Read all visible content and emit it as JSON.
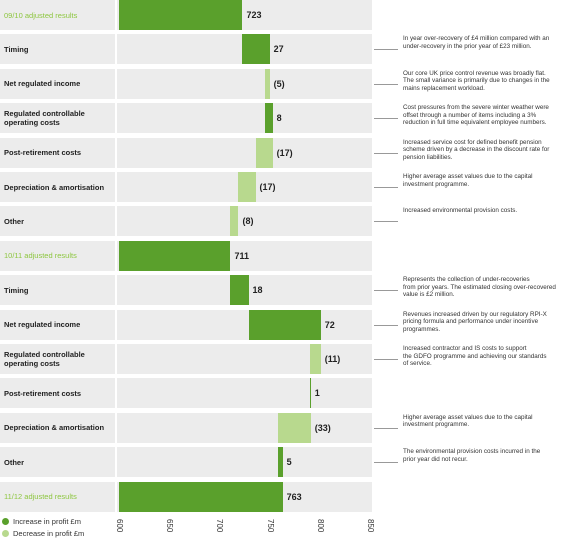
{
  "chart_data": {
    "type": "waterfall",
    "categories": [
      "09/10 adjusted results",
      "Timing",
      "Net regulated income",
      "Regulated controllable operating costs",
      "Post-retirement costs",
      "Depreciation & amortisation",
      "Other",
      "10/11 adjusted results",
      "Timing",
      "Net regulated income",
      "Regulated controllable operating costs",
      "Post-retirement costs",
      "Depreciation & amortisation",
      "Other",
      "11/12 adjusted results"
    ],
    "values": [
      723,
      27,
      -5,
      8,
      -17,
      -17,
      -8,
      711,
      18,
      72,
      -11,
      1,
      -33,
      5,
      763
    ],
    "value_labels": [
      "723",
      "27",
      "(5)",
      "8",
      "(17)",
      "(17)",
      "(8)",
      "711",
      "18",
      "72",
      "(11)",
      "1",
      "(33)",
      "5",
      "763"
    ],
    "annotations": [
      null,
      [
        "In year over-recovery of £4 million compared with an",
        "under-recovery in the prior year of £23 million."
      ],
      [
        "Our core UK price control revenue was broadly flat.",
        "The small variance is primarily due to changes in the",
        "mains replacement workload."
      ],
      [
        "Cost pressures from the severe winter weather were",
        "offset through a number of items including a 3%",
        "reduction in full time equivalent employee numbers."
      ],
      [
        "Increased service cost for defined benefit pension",
        "scheme driven by a decrease in the discount rate for",
        "pension liabilities."
      ],
      [
        "Higher average asset values due to the capital",
        "investment programme."
      ],
      [
        "Increased environmental provision costs."
      ],
      null,
      [
        "Represents the collection of under-recoveries",
        "from prior years. The estimated closing over-recovered",
        "value is £2 million."
      ],
      [
        "Revenues increased driven by our regulatory RPI-X",
        "pricing formula and performance under incentive",
        "programmes."
      ],
      [
        "Increased contractor and IS costs to support",
        "the GDFO programme and achieving our standards",
        "of service."
      ],
      null,
      [
        "Higher average asset values due to the capital",
        "investment programme."
      ],
      [
        "The environmental provision costs incurred in the",
        "prior year did not recur."
      ],
      null
    ],
    "legend": [
      {
        "name": "Increase in profit £m",
        "color": "#5aa02c"
      },
      {
        "name": "Decrease in profit £m",
        "color": "#b8d98e"
      }
    ],
    "xlim": [
      600,
      850
    ],
    "xticks": [
      600,
      650,
      700,
      750,
      800,
      850
    ]
  }
}
